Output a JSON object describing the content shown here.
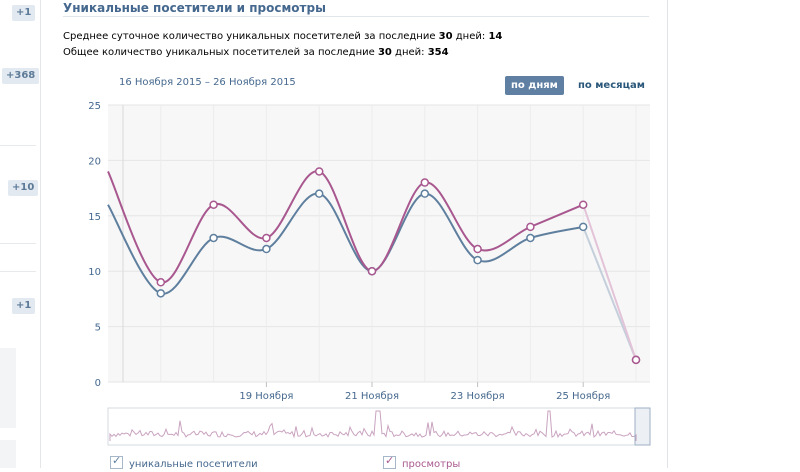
{
  "sidebar": {
    "badges": [
      "+1",
      "+368",
      "+10",
      "+1"
    ]
  },
  "widget": {
    "title": "Уникальные посетители и просмотры",
    "stats": [
      {
        "label": "Среднее суточное количество уникальных посетителей за последние ",
        "days": "30",
        "mid": " дней: ",
        "value": "14"
      },
      {
        "label": "Общее количество уникальных посетителей за последние ",
        "days": "30",
        "mid": " дней: ",
        "value": "354"
      }
    ],
    "date_range": "16 Ноября 2015 – 26 Ноября 2015",
    "toggle": {
      "day": "по дням",
      "month": "по месяцам",
      "selected": "day"
    },
    "legend": {
      "visitors": "уникальные посетители",
      "views": "просмотры"
    }
  },
  "colors": {
    "visitors": "#5f7f9e",
    "views": "#a8588f",
    "accent": "#45688e",
    "plot_bg": "#f7f7f7"
  },
  "chart_data": {
    "type": "line",
    "x": [
      "16 Ноября",
      "17 Ноября",
      "18 Ноября",
      "19 Ноября",
      "20 Ноября",
      "21 Ноября",
      "22 Ноября",
      "23 Ноября",
      "24 Ноября",
      "25 Ноября",
      "26 Ноября"
    ],
    "x_tick_labels": [
      "19 Ноября",
      "21 Ноября",
      "23 Ноября",
      "25 Ноября"
    ],
    "ylim": [
      0,
      25
    ],
    "y_ticks": [
      "0",
      "5",
      "10",
      "15",
      "20",
      "25"
    ],
    "grid": true,
    "series": [
      {
        "name": "уникальные посетители",
        "values": [
          16,
          8,
          13,
          12,
          17,
          10,
          17,
          11,
          13,
          14,
          2
        ]
      },
      {
        "name": "просмотры",
        "values": [
          19,
          9,
          16,
          13,
          19,
          10,
          18,
          12,
          14,
          16,
          2
        ]
      }
    ]
  }
}
